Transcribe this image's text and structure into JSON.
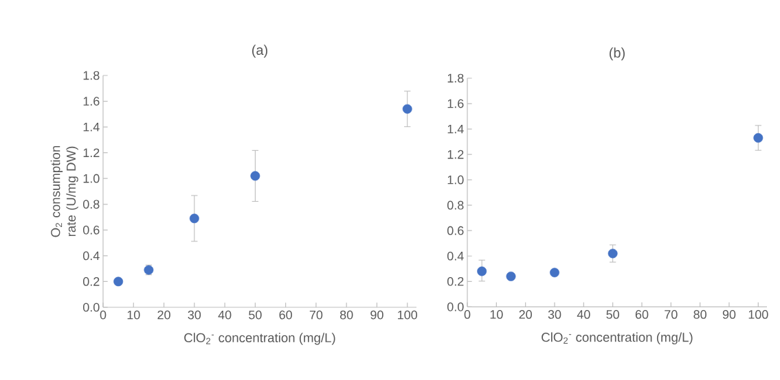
{
  "chart_data": [
    {
      "type": "scatter",
      "title": "(a)",
      "xlabel": "ClO$_{2}$$^{-}$ concentration (mg/L)",
      "ylabel": "O$_{2}$ consumption rate (U/mg DW)",
      "marker": "circle",
      "color": "#4472c4",
      "x": [
        5,
        15,
        30,
        50,
        100
      ],
      "values": [
        0.2,
        0.29,
        0.69,
        1.02,
        1.54
      ],
      "errors": [
        null,
        [
          0.25,
          0.33
        ],
        [
          0.51,
          0.87
        ],
        [
          0.82,
          1.22
        ],
        [
          1.4,
          1.68
        ]
      ],
      "xlim": [
        0,
        103
      ],
      "ylim": [
        0,
        1.8
      ],
      "xticks": [
        0,
        10,
        20,
        30,
        40,
        50,
        60,
        70,
        80,
        90,
        100
      ],
      "yticks": [
        {
          "value": 0,
          "label": "0.0"
        },
        {
          "value": 0.2,
          "label": "0.2"
        },
        {
          "value": 0.4,
          "label": "0.4"
        },
        {
          "value": 0.6,
          "label": "0.6"
        },
        {
          "value": 0.8,
          "label": "0.8"
        },
        {
          "value": 1.0,
          "label": "1.0"
        },
        {
          "value": 1.2,
          "label": "1.2"
        },
        {
          "value": 1.4,
          "label": "1.4"
        },
        {
          "value": 1.6,
          "label": "1.6"
        },
        {
          "value": 1.8,
          "label": "1.8"
        }
      ]
    },
    {
      "type": "scatter",
      "title": "(b)",
      "xlabel": "ClO$_{2}$$^{-}$ concentration (mg/L)",
      "marker": "circle",
      "color": "#4472c4",
      "x": [
        5,
        15,
        30,
        50,
        100
      ],
      "values": [
        0.28,
        0.24,
        0.27,
        0.42,
        1.33
      ],
      "errors": [
        [
          0.2,
          0.37
        ],
        null,
        null,
        [
          0.35,
          0.49
        ],
        [
          1.23,
          1.43
        ]
      ],
      "xlim": [
        0,
        103
      ],
      "ylim": [
        0,
        1.8
      ],
      "xticks": [
        0,
        10,
        20,
        30,
        40,
        50,
        60,
        70,
        80,
        90,
        100
      ],
      "yticks": [
        {
          "value": 0,
          "label": "0.0"
        },
        {
          "value": 0.2,
          "label": "0.2"
        },
        {
          "value": 0.4,
          "label": "0.4"
        },
        {
          "value": 0.6,
          "label": "0.6"
        },
        {
          "value": 0.8,
          "label": "0.8"
        },
        {
          "value": 1.0,
          "label": "1.0"
        },
        {
          "value": 1.2,
          "label": "1.2"
        },
        {
          "value": 1.4,
          "label": "1.4"
        },
        {
          "value": 1.6,
          "label": "1.6"
        },
        {
          "value": 1.8,
          "label": "1.8"
        }
      ]
    }
  ]
}
